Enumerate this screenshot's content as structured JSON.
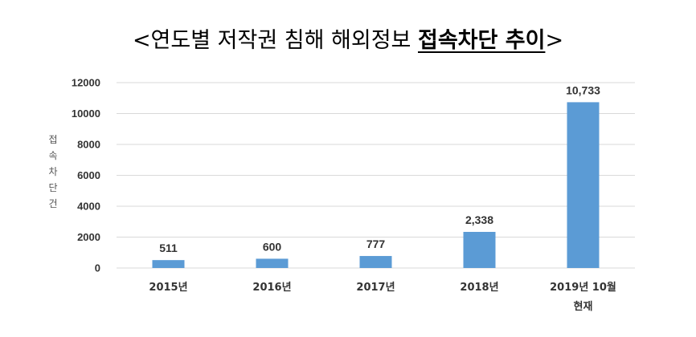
{
  "chart_data": {
    "type": "bar",
    "title_prefix": "<연도별 저작권 침해 해외정보 ",
    "title_emphasis": "접속차단 추이",
    "title_suffix": ">",
    "ylabel": "접속차단건",
    "ylim": [
      0,
      12000
    ],
    "yticks": [
      0,
      2000,
      4000,
      6000,
      8000,
      10000,
      12000
    ],
    "ytick_labels": [
      "0",
      "2000",
      "4000",
      "6000",
      "8000",
      "10000",
      "12000"
    ],
    "grid": true,
    "categories": [
      [
        "2015년"
      ],
      [
        "2016년"
      ],
      [
        "2017년"
      ],
      [
        "2018년"
      ],
      [
        "2019년 10월",
        "현재"
      ]
    ],
    "values": [
      511,
      600,
      777,
      2338,
      10733
    ],
    "data_labels": [
      "511",
      "600",
      "777",
      "2,338",
      "10,733"
    ],
    "bar_color": "#5b9bd5",
    "grid_color": "#d9d9d9"
  }
}
